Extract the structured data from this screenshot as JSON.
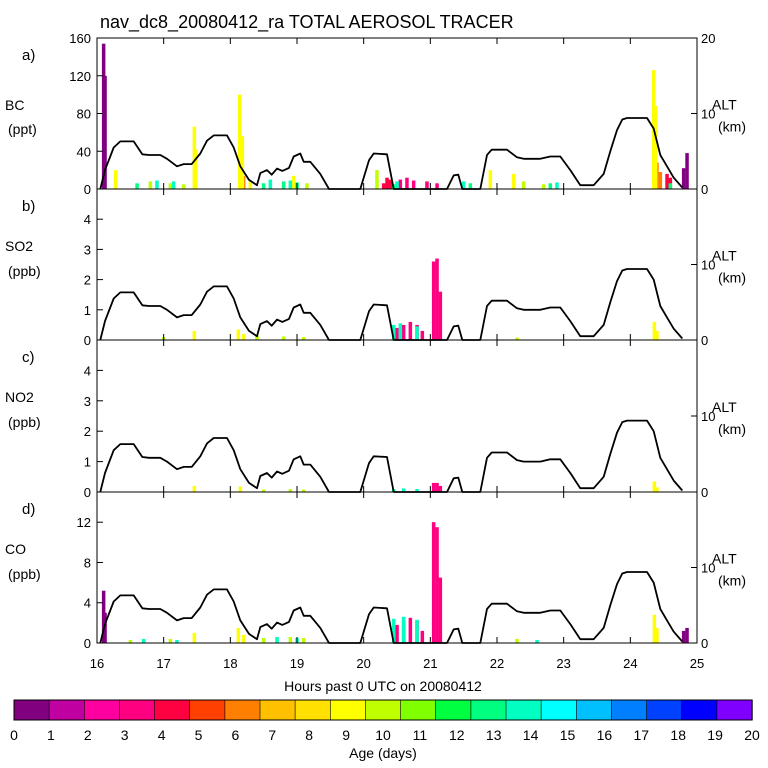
{
  "chart_data": {
    "type": "area",
    "title": "nav_dc8_20080412_ra TOTAL AEROSOL TRACER",
    "xlabel": "Hours past 0 UTC on 20080412",
    "xlim": [
      16,
      25
    ],
    "xticks": [
      16,
      17,
      18,
      19,
      20,
      21,
      22,
      23,
      24,
      25
    ],
    "alt_axis": {
      "label": "ALT",
      "units": "(km)",
      "range": [
        0,
        20
      ],
      "ticks": [
        0,
        10,
        20
      ]
    },
    "altitude_profile_km": [
      [
        16.05,
        0
      ],
      [
        16.12,
        2.5
      ],
      [
        16.25,
        5.5
      ],
      [
        16.35,
        6.3
      ],
      [
        16.55,
        6.3
      ],
      [
        16.68,
        4.6
      ],
      [
        16.78,
        4.5
      ],
      [
        16.95,
        4.5
      ],
      [
        17.05,
        4.0
      ],
      [
        17.2,
        3.0
      ],
      [
        17.3,
        3.3
      ],
      [
        17.42,
        3.3
      ],
      [
        17.55,
        4.7
      ],
      [
        17.65,
        6.4
      ],
      [
        17.75,
        7.1
      ],
      [
        17.95,
        7.1
      ],
      [
        18.05,
        5.5
      ],
      [
        18.15,
        3.0
      ],
      [
        18.28,
        1.2
      ],
      [
        18.4,
        0.5
      ],
      [
        18.45,
        2.1
      ],
      [
        18.55,
        2.5
      ],
      [
        18.62,
        1.9
      ],
      [
        18.7,
        2.7
      ],
      [
        18.78,
        2.4
      ],
      [
        18.88,
        2.8
      ],
      [
        18.95,
        4.3
      ],
      [
        19.05,
        4.7
      ],
      [
        19.1,
        3.6
      ],
      [
        19.2,
        3.6
      ],
      [
        19.35,
        2.0
      ],
      [
        19.48,
        0
      ],
      [
        19.95,
        0
      ],
      [
        20.08,
        3.8
      ],
      [
        20.15,
        4.7
      ],
      [
        20.35,
        4.6
      ],
      [
        20.45,
        0
      ],
      [
        21.25,
        0
      ],
      [
        21.35,
        1.8
      ],
      [
        21.42,
        1.9
      ],
      [
        21.48,
        0
      ],
      [
        21.75,
        0
      ],
      [
        21.85,
        4.5
      ],
      [
        21.92,
        5.2
      ],
      [
        22.15,
        5.2
      ],
      [
        22.3,
        4.2
      ],
      [
        22.4,
        4.0
      ],
      [
        22.65,
        4.0
      ],
      [
        22.8,
        4.3
      ],
      [
        22.95,
        4.3
      ],
      [
        23.1,
        2.5
      ],
      [
        23.25,
        0.5
      ],
      [
        23.45,
        0.5
      ],
      [
        23.6,
        2.0
      ],
      [
        23.7,
        5.0
      ],
      [
        23.8,
        7.8
      ],
      [
        23.88,
        9.2
      ],
      [
        23.95,
        9.4
      ],
      [
        24.25,
        9.4
      ],
      [
        24.35,
        8.0
      ],
      [
        24.45,
        4.5
      ],
      [
        24.55,
        3.0
      ],
      [
        24.65,
        1.5
      ],
      [
        24.78,
        0.2
      ]
    ],
    "panels": [
      {
        "label": "a)",
        "name": "BC",
        "units": "(ppt)",
        "ylim": [
          0,
          160
        ],
        "yticks": [
          0,
          40,
          80,
          120,
          160
        ],
        "ytick_labels": [
          "0",
          "40",
          "80",
          "120",
          "160"
        ],
        "series": [
          {
            "name": "age 0-1 d",
            "color": "#800080",
            "points": [
              [
                16.1,
                154
              ],
              [
                16.12,
                120
              ],
              [
                24.8,
                22
              ],
              [
                24.85,
                38
              ]
            ]
          },
          {
            "name": "age 3-4 d",
            "color": "#ff0080",
            "points": [
              [
                20.55,
                10
              ],
              [
                20.65,
                12
              ],
              [
                20.75,
                9
              ],
              [
                20.95,
                8
              ],
              [
                21.1,
                6
              ]
            ]
          },
          {
            "name": "age 4-5 d",
            "color": "#ff0040",
            "points": [
              [
                20.3,
                6
              ],
              [
                20.35,
                12
              ],
              [
                20.4,
                10
              ],
              [
                24.55,
                16
              ],
              [
                24.6,
                12
              ]
            ]
          },
          {
            "name": "age 6-7 d",
            "color": "#ff8000",
            "points": [
              [
                18.15,
                28
              ],
              [
                18.2,
                14
              ],
              [
                24.4,
                28
              ],
              [
                24.45,
                18
              ]
            ]
          },
          {
            "name": "age 8-9 d",
            "color": "#ffff00",
            "points": [
              [
                16.28,
                20
              ],
              [
                17.46,
                66
              ],
              [
                17.48,
                42
              ],
              [
                18.14,
                100
              ],
              [
                18.18,
                56
              ],
              [
                18.3,
                8
              ],
              [
                18.95,
                14
              ],
              [
                21.9,
                20
              ],
              [
                22.25,
                16
              ],
              [
                24.35,
                126
              ],
              [
                24.38,
                88
              ]
            ]
          },
          {
            "name": "age 10-11 d",
            "color": "#c0ff00",
            "points": [
              [
                16.8,
                8
              ],
              [
                17.1,
                6
              ],
              [
                17.3,
                5
              ],
              [
                19.15,
                6
              ],
              [
                20.2,
                20
              ],
              [
                22.4,
                8
              ],
              [
                22.7,
                5
              ]
            ]
          },
          {
            "name": "age 13-14 d",
            "color": "#00ff80",
            "points": [
              [
                16.6,
                6
              ],
              [
                18.5,
                6
              ],
              [
                18.8,
                8
              ],
              [
                19.0,
                7
              ],
              [
                20.45,
                5
              ],
              [
                21.6,
                6
              ],
              [
                22.8,
                6
              ],
              [
                24.6,
                6
              ]
            ]
          },
          {
            "name": "age 14-15 d",
            "color": "#00ffc0",
            "points": [
              [
                16.9,
                9
              ],
              [
                17.15,
                8
              ],
              [
                18.6,
                10
              ],
              [
                18.9,
                9
              ],
              [
                20.5,
                8
              ],
              [
                21.5,
                8
              ],
              [
                22.9,
                7
              ]
            ]
          }
        ]
      },
      {
        "label": "b)",
        "name": "SO2",
        "units": "(ppb)",
        "ylim": [
          0,
          5
        ],
        "yticks": [
          0,
          1,
          2,
          3,
          4
        ],
        "ytick_labels": [
          "0",
          "1",
          "2",
          "3",
          "4"
        ],
        "series": [
          {
            "name": "age 3-4 d",
            "color": "#ff0080",
            "points": [
              [
                20.5,
                0.4
              ],
              [
                20.6,
                0.5
              ],
              [
                20.7,
                0.6
              ],
              [
                20.8,
                0.5
              ],
              [
                20.88,
                0.3
              ],
              [
                21.05,
                2.6
              ],
              [
                21.1,
                2.7
              ],
              [
                21.15,
                1.6
              ]
            ]
          },
          {
            "name": "age 8-9 d",
            "color": "#ffff00",
            "points": [
              [
                17.46,
                0.3
              ],
              [
                18.12,
                0.35
              ],
              [
                18.2,
                0.2
              ],
              [
                24.36,
                0.6
              ],
              [
                24.4,
                0.3
              ]
            ]
          },
          {
            "name": "age 10-11 d",
            "color": "#c0ff00",
            "points": [
              [
                17.0,
                0.1
              ],
              [
                18.4,
                0.15
              ],
              [
                18.8,
                0.12
              ],
              [
                19.1,
                0.1
              ],
              [
                22.3,
                0.08
              ]
            ]
          },
          {
            "name": "age 14-15 d",
            "color": "#00ffc0",
            "points": [
              [
                20.45,
                0.5
              ],
              [
                20.55,
                0.55
              ],
              [
                20.8,
                0.45
              ]
            ]
          }
        ]
      },
      {
        "label": "c)",
        "name": "NO2",
        "units": "(ppb)",
        "ylim": [
          0,
          5
        ],
        "yticks": [
          0,
          1,
          2,
          3,
          4
        ],
        "ytick_labels": [
          "0",
          "1",
          "2",
          "3",
          "4"
        ],
        "series": [
          {
            "name": "age 3-4 d",
            "color": "#ff0080",
            "points": [
              [
                21.05,
                0.3
              ],
              [
                21.1,
                0.3
              ],
              [
                21.15,
                0.2
              ]
            ]
          },
          {
            "name": "age 8-9 d",
            "color": "#ffff00",
            "points": [
              [
                17.46,
                0.2
              ],
              [
                18.15,
                0.18
              ],
              [
                24.36,
                0.35
              ],
              [
                24.4,
                0.15
              ]
            ]
          },
          {
            "name": "age 10-11 d",
            "color": "#c0ff00",
            "points": [
              [
                18.5,
                0.08
              ],
              [
                18.9,
                0.1
              ],
              [
                19.1,
                0.08
              ]
            ]
          },
          {
            "name": "age 14-15 d",
            "color": "#00ffc0",
            "points": [
              [
                20.45,
                0.1
              ],
              [
                20.6,
                0.12
              ],
              [
                20.8,
                0.1
              ]
            ]
          }
        ]
      },
      {
        "label": "d)",
        "name": "CO",
        "units": "(ppb)",
        "ylim": [
          0,
          15
        ],
        "yticks": [
          0,
          4,
          8,
          12
        ],
        "ytick_labels": [
          "0",
          "4",
          "8",
          "12"
        ],
        "series": [
          {
            "name": "age 0-1 d",
            "color": "#800080",
            "points": [
              [
                16.1,
                5.2
              ],
              [
                16.12,
                3.0
              ],
              [
                24.8,
                1.2
              ],
              [
                24.85,
                1.5
              ]
            ]
          },
          {
            "name": "age 3-4 d",
            "color": "#ff0080",
            "points": [
              [
                20.5,
                1.8
              ],
              [
                20.6,
                2.2
              ],
              [
                20.7,
                2.5
              ],
              [
                20.8,
                2.2
              ],
              [
                20.88,
                1.2
              ],
              [
                21.05,
                12
              ],
              [
                21.1,
                11.5
              ],
              [
                21.15,
                6.5
              ]
            ]
          },
          {
            "name": "age 8-9 d",
            "color": "#ffff00",
            "points": [
              [
                17.46,
                1.0
              ],
              [
                18.12,
                1.5
              ],
              [
                18.2,
                0.8
              ],
              [
                24.36,
                2.8
              ],
              [
                24.4,
                1.5
              ]
            ]
          },
          {
            "name": "age 10-11 d",
            "color": "#c0ff00",
            "points": [
              [
                16.5,
                0.3
              ],
              [
                17.1,
                0.4
              ],
              [
                18.5,
                0.5
              ],
              [
                18.9,
                0.6
              ],
              [
                19.1,
                0.5
              ],
              [
                22.3,
                0.4
              ]
            ]
          },
          {
            "name": "age 14-15 d",
            "color": "#00ffc0",
            "points": [
              [
                16.7,
                0.4
              ],
              [
                17.2,
                0.3
              ],
              [
                18.7,
                0.6
              ],
              [
                19.0,
                0.5
              ],
              [
                20.45,
                2.4
              ],
              [
                20.6,
                2.6
              ],
              [
                20.8,
                2.3
              ],
              [
                22.6,
                0.3
              ]
            ]
          }
        ]
      }
    ],
    "colorbar": {
      "label": "Age (days)",
      "tick_labels": [
        "0",
        "1",
        "2",
        "3",
        "4",
        "5",
        "6",
        "7",
        "8",
        "9",
        "10",
        "11",
        "12",
        "13",
        "14",
        "15",
        "16",
        "17",
        "18",
        "19",
        "20"
      ],
      "colors": [
        "#800080",
        "#c000a0",
        "#ff00a0",
        "#ff0080",
        "#ff0040",
        "#ff4000",
        "#ff8000",
        "#ffc000",
        "#ffe000",
        "#ffff00",
        "#c0ff00",
        "#80ff00",
        "#00ff40",
        "#00ff80",
        "#00ffc0",
        "#00ffff",
        "#00c0ff",
        "#0080ff",
        "#0040ff",
        "#0000ff",
        "#8000ff"
      ]
    }
  }
}
